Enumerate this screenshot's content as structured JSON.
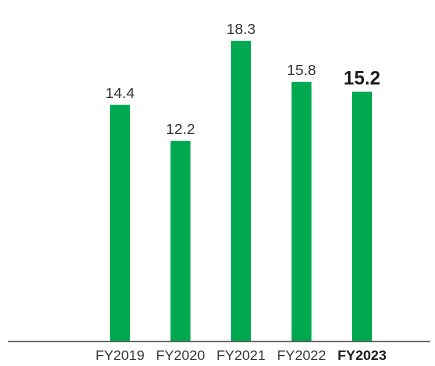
{
  "chart_data": {
    "type": "bar",
    "title": "",
    "xlabel": "",
    "ylabel": "",
    "categories": [
      "FY2019",
      "FY2020",
      "FY2021",
      "FY2022",
      "FY2023"
    ],
    "values": [
      14.4,
      12.2,
      18.3,
      15.8,
      15.2
    ],
    "value_labels": [
      "14.4",
      "12.2",
      "18.3",
      "15.8",
      "15.2"
    ],
    "highlight_index": 4,
    "ylim": [
      0,
      20
    ],
    "grid": false,
    "legend": "none",
    "colors": {
      "bar": "#00a84f",
      "axis": "#555555"
    }
  }
}
